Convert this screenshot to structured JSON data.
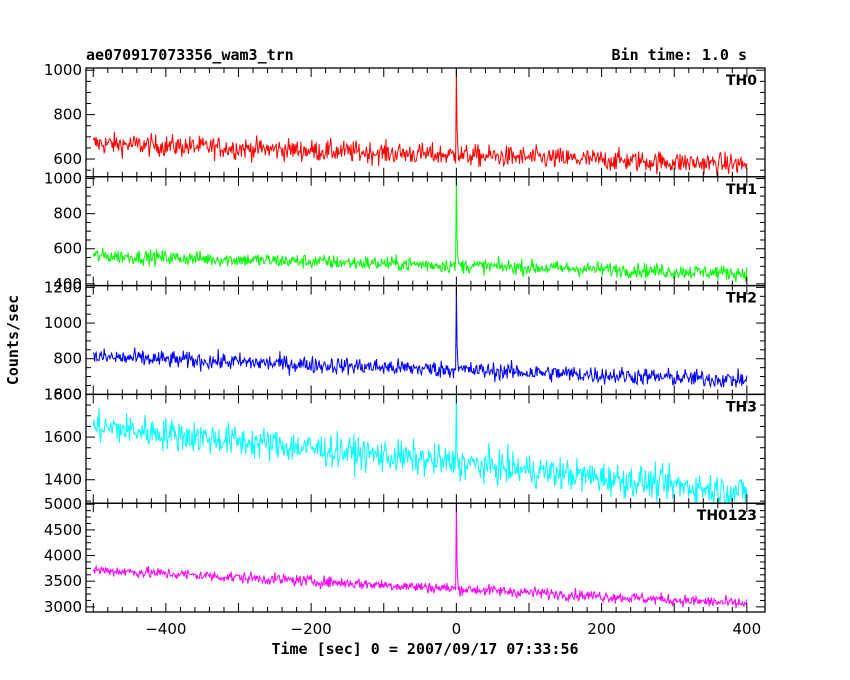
{
  "header": {
    "title": "ae070917073356_wam3_trn",
    "bin_time": "Bin time: 1.0 s"
  },
  "chart_data": {
    "type": "line",
    "title": "ae070917073356_wam3_trn",
    "subtitle": "Bin time: 1.0 s",
    "xlabel": "Time [sec] 0 = 2007/09/17 07:33:56",
    "ylabel": "Counts/sec",
    "xlim": [
      -510,
      425
    ],
    "x_ticks": [
      -400,
      -200,
      0,
      200,
      400
    ],
    "x_tick_labels": [
      "−400",
      "−200",
      "0",
      "200",
      "400"
    ],
    "grid": false,
    "panels": [
      {
        "name": "TH0",
        "color": "#ff0000",
        "ylim": [
          520,
          1010
        ],
        "y_ticks": [
          600,
          800,
          1000
        ],
        "y_tick_labels": [
          "600",
          "800",
          "1000"
        ],
        "trend_x": [
          -500,
          400
        ],
        "trend_y": [
          670,
          575
        ],
        "noise_amplitude": 35,
        "peak_x": 0,
        "peak_y": 1010
      },
      {
        "name": "TH1",
        "color": "#00ff00",
        "ylim": [
          390,
          1010
        ],
        "y_ticks": [
          400,
          600,
          800,
          1000
        ],
        "y_tick_labels": [
          "400",
          "600",
          "800",
          "1000"
        ],
        "trend_x": [
          -500,
          400
        ],
        "trend_y": [
          560,
          460
        ],
        "noise_amplitude": 30,
        "peak_x": 0,
        "peak_y": 1010
      },
      {
        "name": "TH2",
        "color": "#0000ff",
        "ylim": [
          600,
          1210
        ],
        "y_ticks": [
          600,
          800,
          1000,
          1200
        ],
        "y_tick_labels": [
          "600",
          "800",
          "1000",
          "1200"
        ],
        "trend_x": [
          -500,
          400
        ],
        "trend_y": [
          810,
          680
        ],
        "noise_amplitude": 35,
        "peak_x": 0,
        "peak_y": 1200
      },
      {
        "name": "TH3",
        "color": "#00ffff",
        "ylim": [
          1290,
          1800
        ],
        "y_ticks": [
          1400,
          1600,
          1800
        ],
        "y_tick_labels": [
          "1400",
          "1600",
          "1800"
        ],
        "trend_x": [
          -500,
          400
        ],
        "trend_y": [
          1650,
          1340
        ],
        "noise_amplitude": 55,
        "peak_x": 0,
        "peak_y": 1800
      },
      {
        "name": "TH0123",
        "color": "#ff00ff",
        "ylim": [
          2900,
          5020
        ],
        "y_ticks": [
          3000,
          3500,
          4000,
          4500,
          5000
        ],
        "y_tick_labels": [
          "3000",
          "3500",
          "4000",
          "4500",
          "5000"
        ],
        "trend_x": [
          -500,
          400
        ],
        "trend_y": [
          3720,
          3060
        ],
        "noise_amplitude": 80,
        "peak_x": 0,
        "peak_y": 5020
      }
    ]
  }
}
